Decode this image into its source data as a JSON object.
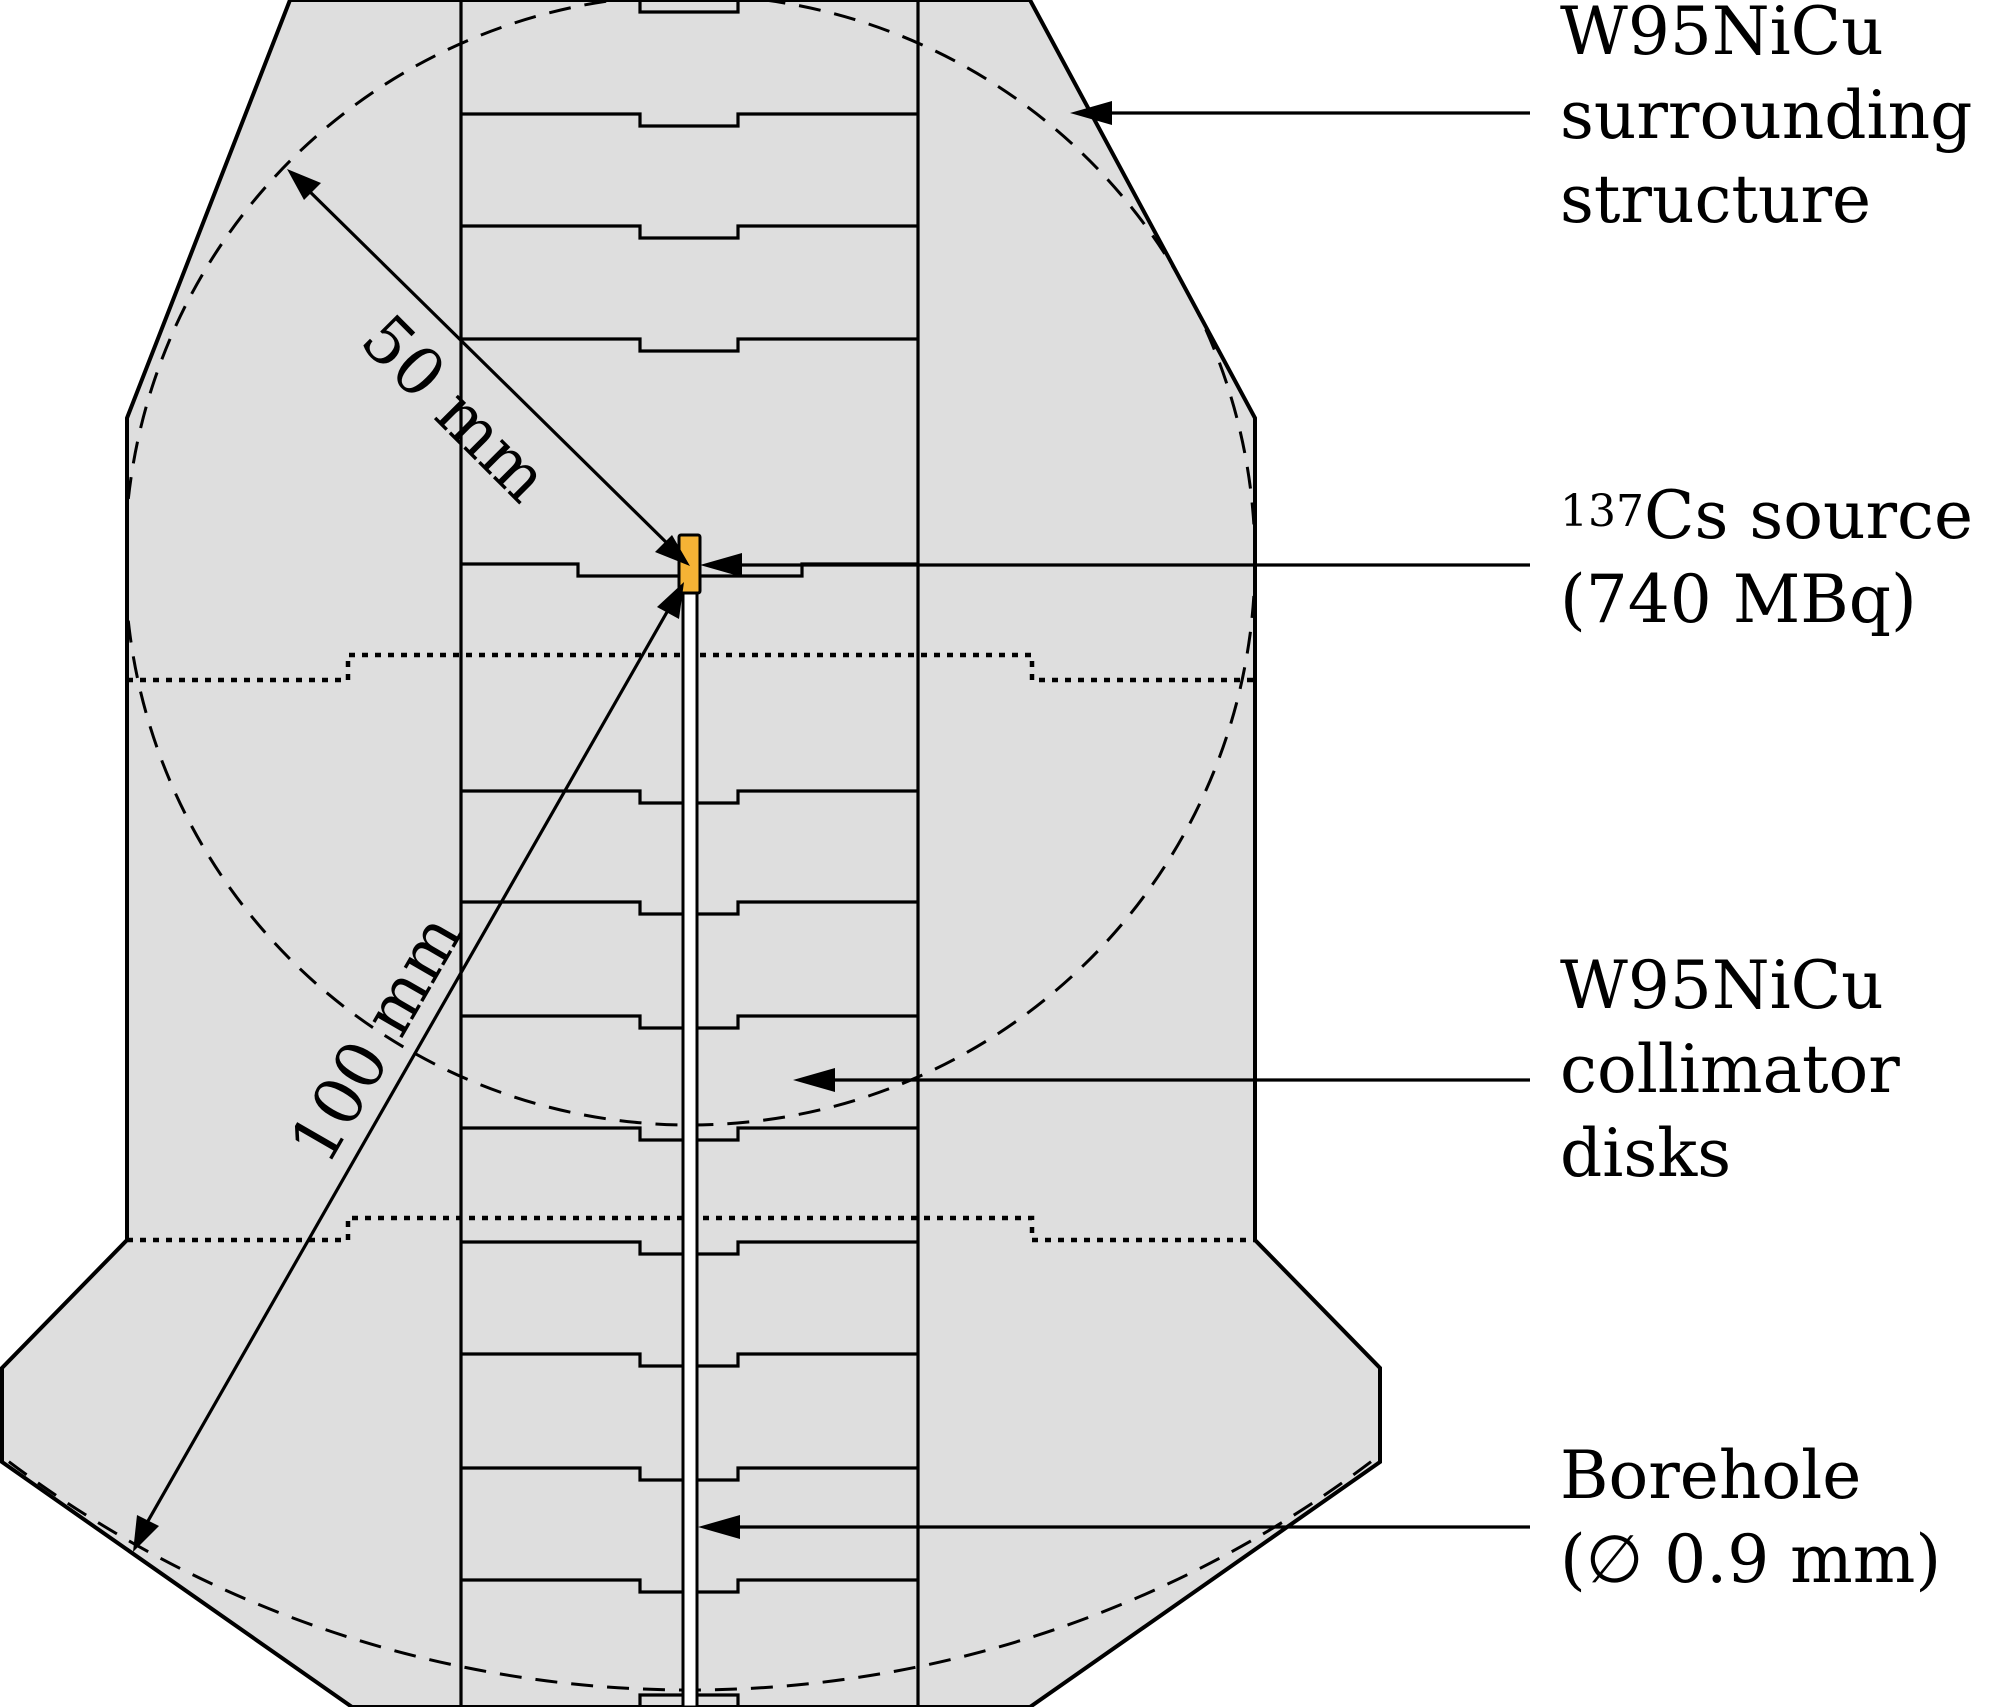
{
  "labels": {
    "surrounding": [
      "W95NiCu",
      "surrounding",
      "structure"
    ],
    "source": {
      "isotope_mass": "137",
      "line1_rest": "Cs source",
      "line2": "(740 MBq)"
    },
    "collimator": [
      "W95NiCu",
      "collimator",
      "disks"
    ],
    "borehole": [
      "Borehole",
      "(∅ 0.9 mm)"
    ]
  },
  "dimensions": {
    "radius_small": "50 mm",
    "radius_large": "100 mm"
  },
  "colors": {
    "structure_fill": "#dedede",
    "source_fill": "#f5b335",
    "outline": "#000000"
  }
}
